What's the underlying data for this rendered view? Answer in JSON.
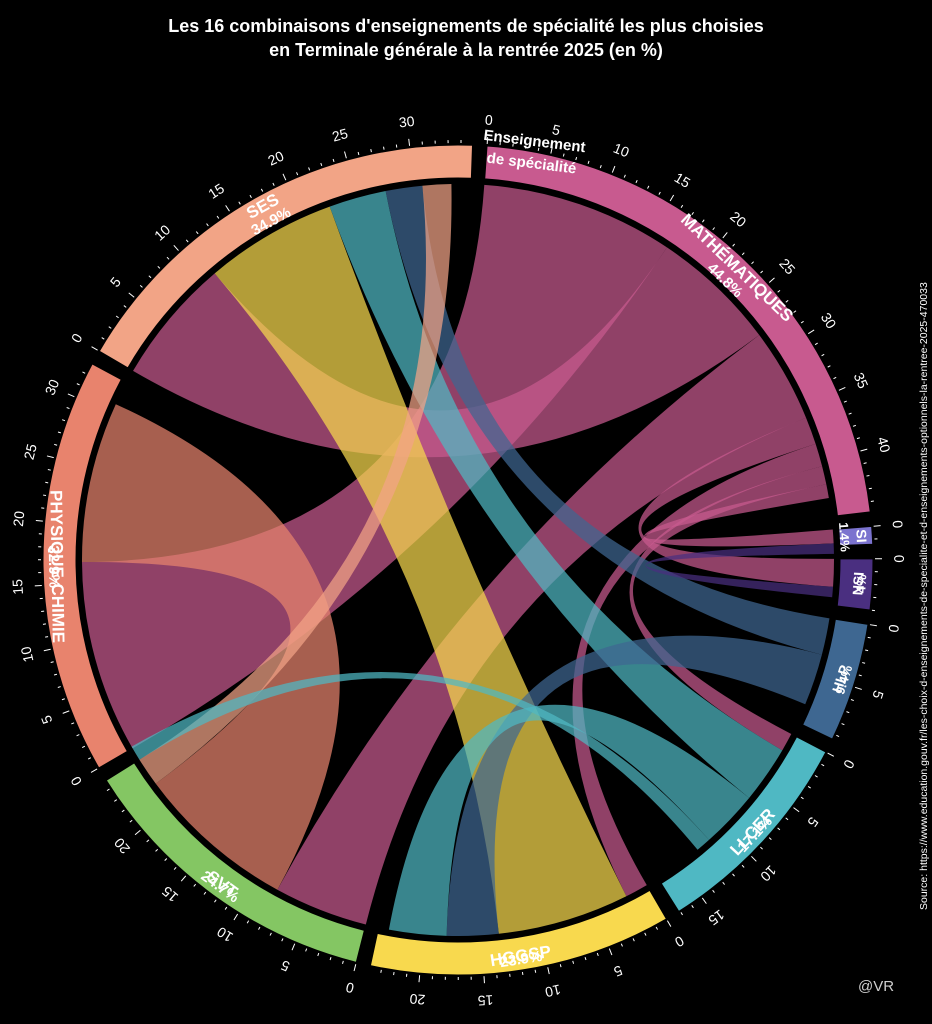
{
  "title": {
    "line1": "Les 16 combinaisons d'enseignements de spécialité les plus choisies",
    "line2": "en Terminale générale à la rentrée 2025 (en %)"
  },
  "legend_title": {
    "line1": "Enseignement",
    "line2": "de spécialité"
  },
  "source": "Source: https://www.education.gouv.fr/les-choix-d-enseignements-de-specialite-et-d-enseignements-optionnels-la-rentree-2025-470033",
  "credit": "@VR",
  "chart_data": {
    "type": "chord",
    "segments": [
      {
        "name": "MATHÉMATIQUES",
        "pct_label": "44.8%",
        "value": 44.8,
        "color": "#c85a8f",
        "ticks": [
          0,
          5,
          10,
          15,
          20,
          25,
          30,
          35,
          40
        ]
      },
      {
        "name": "SI",
        "pct_label": "1.4%",
        "value": 1.4,
        "color": "#7b73cf",
        "ticks": [
          0
        ]
      },
      {
        "name": "NSI",
        "pct_label": "4%",
        "value": 4.0,
        "color": "#4a2f80",
        "ticks": [
          0
        ]
      },
      {
        "name": "HLP",
        "pct_label": "9.4%",
        "value": 9.4,
        "color": "#3e6791",
        "ticks": [
          0,
          5
        ]
      },
      {
        "name": "LLCER",
        "pct_label": "17.1%",
        "value": 17.1,
        "color": "#4fb8c3",
        "ticks": [
          0,
          5,
          10,
          15
        ]
      },
      {
        "name": "HGGSP",
        "pct_label": "23.9%",
        "value": 23.9,
        "color": "#f8d94e",
        "ticks": [
          0,
          5,
          10,
          15,
          20
        ]
      },
      {
        "name": "SVT",
        "pct_label": "24.7%",
        "value": 24.7,
        "color": "#84c663",
        "ticks": [
          0,
          5,
          10,
          15,
          20
        ]
      },
      {
        "name": "PHYSIQUE-CHIMIE",
        "pct_label": "32.9%",
        "value": 32.9,
        "color": "#e8836d",
        "ticks": [
          0,
          5,
          10,
          15,
          20,
          25,
          30
        ]
      },
      {
        "name": "SES",
        "pct_label": "34.9%",
        "value": 34.9,
        "color": "#f2a486",
        "ticks": [
          0,
          5,
          10,
          15,
          20,
          25,
          30
        ]
      }
    ],
    "links": [
      {
        "source": "MATHÉMATIQUES",
        "target": "PHYSIQUE-CHIMIE",
        "value": 16.8
      },
      {
        "source": "MATHÉMATIQUES",
        "target": "SES",
        "value": 11.0
      },
      {
        "source": "MATHÉMATIQUES",
        "target": "SVT",
        "value": 8.2
      },
      {
        "source": "MATHÉMATIQUES",
        "target": "NSI",
        "value": 2.4
      },
      {
        "source": "MATHÉMATIQUES",
        "target": "HGGSP",
        "value": 2.0
      },
      {
        "source": "MATHÉMATIQUES",
        "target": "LLCER",
        "value": 1.6
      },
      {
        "source": "MATHÉMATIQUES",
        "target": "SI",
        "value": 1.2
      },
      {
        "source": "PHYSIQUE-CHIMIE",
        "target": "SVT",
        "value": 14.0
      },
      {
        "source": "HGGSP",
        "target": "SES",
        "value": 11.5
      },
      {
        "source": "LLCER",
        "target": "SES",
        "value": 5.0
      },
      {
        "source": "HLP",
        "target": "SES",
        "value": 3.2
      },
      {
        "source": "SES",
        "target": "SVT",
        "value": 2.5
      },
      {
        "source": "HLP",
        "target": "HGGSP",
        "value": 4.5
      },
      {
        "source": "LLCER",
        "target": "HGGSP",
        "value": 5.0
      },
      {
        "source": "LLCER",
        "target": "SVT",
        "value": 1.3
      },
      {
        "source": "NSI",
        "target": "SI",
        "value": 0.9
      }
    ]
  }
}
